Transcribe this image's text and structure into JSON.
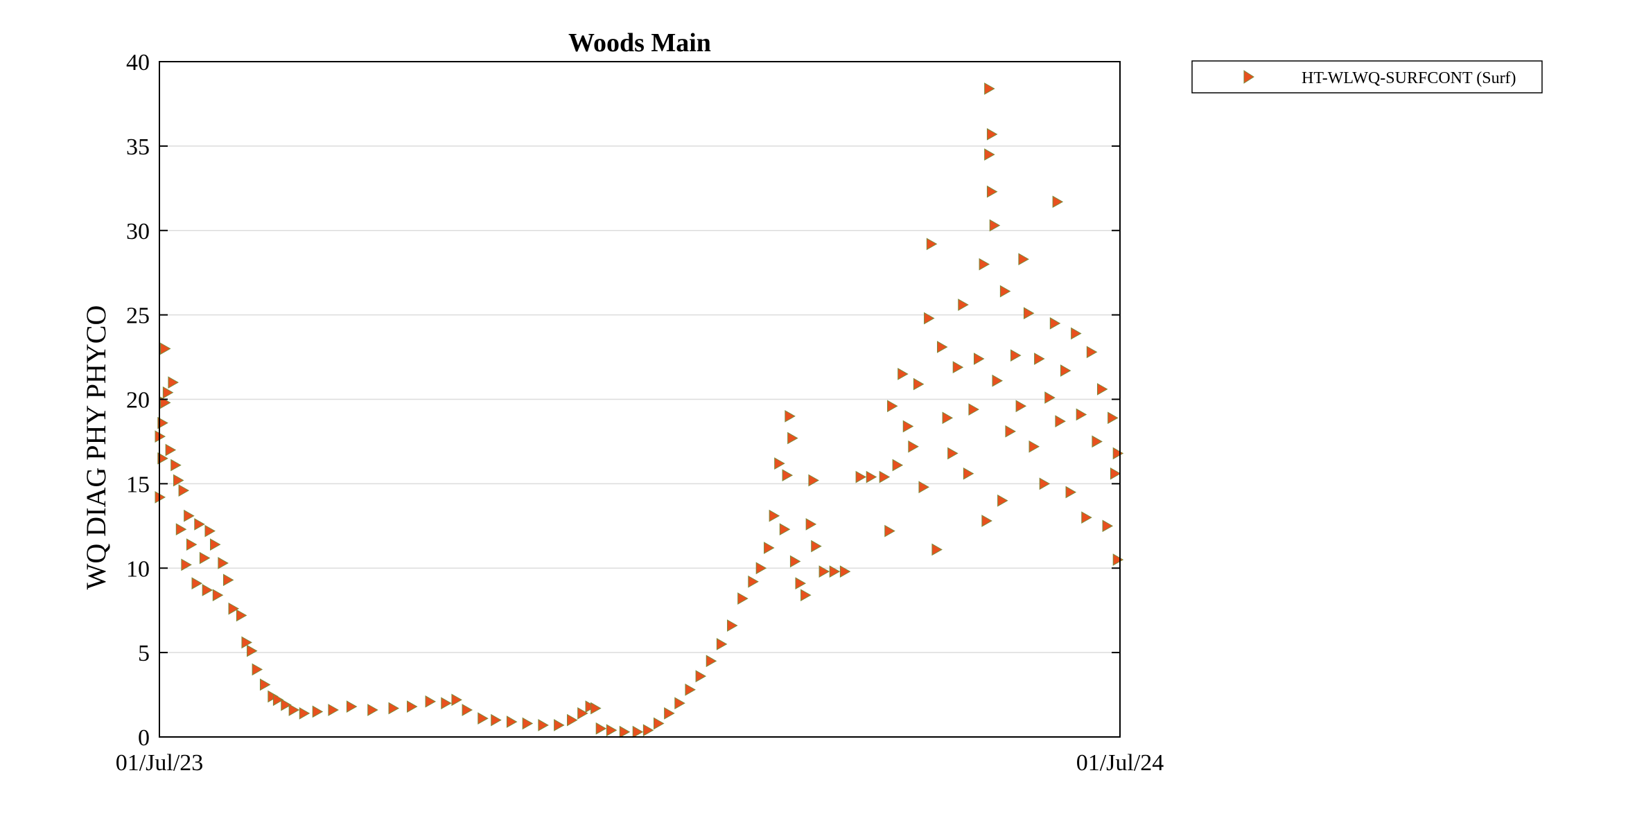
{
  "chart_data": {
    "type": "scatter",
    "title": "Woods Main",
    "xlabel": "",
    "ylabel": "WQ DIAG PHY PHYCO",
    "xlim": [
      "2023-07-01",
      "2024-07-01"
    ],
    "x_tick_labels": [
      "01/Jul/23",
      "01/Jul/24"
    ],
    "ylim": [
      0,
      40
    ],
    "y_ticks": [
      0,
      5,
      10,
      15,
      20,
      25,
      30,
      35,
      40
    ],
    "grid": true,
    "legend_position": "outside-top-right",
    "series": [
      {
        "name": "HT-WLWQ-SURFCONT (Surf)",
        "marker": "right-triangle",
        "color": "#e8501e",
        "edge_color": "#7a8a3a",
        "points": [
          [
            "2023-07-01",
            14.2
          ],
          [
            "2023-07-01",
            17.8
          ],
          [
            "2023-07-02",
            16.5
          ],
          [
            "2023-07-02",
            18.6
          ],
          [
            "2023-07-03",
            23.0
          ],
          [
            "2023-07-03",
            19.8
          ],
          [
            "2023-07-04",
            20.4
          ],
          [
            "2023-07-05",
            17.0
          ],
          [
            "2023-07-06",
            21.0
          ],
          [
            "2023-07-07",
            16.1
          ],
          [
            "2023-07-08",
            15.2
          ],
          [
            "2023-07-09",
            12.3
          ],
          [
            "2023-07-10",
            14.6
          ],
          [
            "2023-07-11",
            10.2
          ],
          [
            "2023-07-12",
            13.1
          ],
          [
            "2023-07-13",
            11.4
          ],
          [
            "2023-07-15",
            9.1
          ],
          [
            "2023-07-16",
            12.6
          ],
          [
            "2023-07-18",
            10.6
          ],
          [
            "2023-07-19",
            8.7
          ],
          [
            "2023-07-20",
            12.2
          ],
          [
            "2023-07-22",
            11.4
          ],
          [
            "2023-07-23",
            8.4
          ],
          [
            "2023-07-25",
            10.3
          ],
          [
            "2023-07-27",
            9.3
          ],
          [
            "2023-07-29",
            7.6
          ],
          [
            "2023-08-01",
            7.2
          ],
          [
            "2023-08-03",
            5.6
          ],
          [
            "2023-08-05",
            5.1
          ],
          [
            "2023-08-07",
            4.0
          ],
          [
            "2023-08-10",
            3.1
          ],
          [
            "2023-08-13",
            2.4
          ],
          [
            "2023-08-15",
            2.2
          ],
          [
            "2023-08-18",
            1.9
          ],
          [
            "2023-08-21",
            1.6
          ],
          [
            "2023-08-25",
            1.4
          ],
          [
            "2023-08-30",
            1.5
          ],
          [
            "2023-09-05",
            1.6
          ],
          [
            "2023-09-12",
            1.8
          ],
          [
            "2023-09-20",
            1.6
          ],
          [
            "2023-09-28",
            1.7
          ],
          [
            "2023-10-05",
            1.8
          ],
          [
            "2023-10-12",
            2.1
          ],
          [
            "2023-10-18",
            2.0
          ],
          [
            "2023-10-22",
            2.2
          ],
          [
            "2023-10-26",
            1.6
          ],
          [
            "2023-11-01",
            1.1
          ],
          [
            "2023-11-06",
            1.0
          ],
          [
            "2023-11-12",
            0.9
          ],
          [
            "2023-11-18",
            0.8
          ],
          [
            "2023-11-24",
            0.7
          ],
          [
            "2023-11-30",
            0.7
          ],
          [
            "2023-12-05",
            1.0
          ],
          [
            "2023-12-09",
            1.4
          ],
          [
            "2023-12-12",
            1.8
          ],
          [
            "2023-12-14",
            1.7
          ],
          [
            "2023-12-16",
            0.5
          ],
          [
            "2023-12-20",
            0.4
          ],
          [
            "2023-12-25",
            0.3
          ],
          [
            "2023-12-30",
            0.3
          ],
          [
            "2024-01-03",
            0.4
          ],
          [
            "2024-01-07",
            0.8
          ],
          [
            "2024-01-11",
            1.4
          ],
          [
            "2024-01-15",
            2.0
          ],
          [
            "2024-01-19",
            2.8
          ],
          [
            "2024-01-23",
            3.6
          ],
          [
            "2024-01-27",
            4.5
          ],
          [
            "2024-01-31",
            5.5
          ],
          [
            "2024-02-04",
            6.6
          ],
          [
            "2024-02-08",
            8.2
          ],
          [
            "2024-02-12",
            9.2
          ],
          [
            "2024-02-15",
            10.0
          ],
          [
            "2024-02-18",
            11.2
          ],
          [
            "2024-02-20",
            13.1
          ],
          [
            "2024-02-22",
            16.2
          ],
          [
            "2024-02-24",
            12.3
          ],
          [
            "2024-02-25",
            15.5
          ],
          [
            "2024-02-26",
            19.0
          ],
          [
            "2024-02-27",
            17.7
          ],
          [
            "2024-02-28",
            10.4
          ],
          [
            "2024-03-01",
            9.1
          ],
          [
            "2024-03-03",
            8.4
          ],
          [
            "2024-03-05",
            12.6
          ],
          [
            "2024-03-06",
            15.2
          ],
          [
            "2024-03-07",
            11.3
          ],
          [
            "2024-03-10",
            9.8
          ],
          [
            "2024-03-14",
            9.8
          ],
          [
            "2024-03-18",
            9.8
          ],
          [
            "2024-03-24",
            15.4
          ],
          [
            "2024-03-28",
            15.4
          ],
          [
            "2024-04-02",
            15.4
          ],
          [
            "2024-04-04",
            12.2
          ],
          [
            "2024-04-05",
            19.6
          ],
          [
            "2024-04-07",
            16.1
          ],
          [
            "2024-04-09",
            21.5
          ],
          [
            "2024-04-11",
            18.4
          ],
          [
            "2024-04-13",
            17.2
          ],
          [
            "2024-04-15",
            20.9
          ],
          [
            "2024-04-17",
            14.8
          ],
          [
            "2024-04-19",
            24.8
          ],
          [
            "2024-04-20",
            29.2
          ],
          [
            "2024-04-22",
            11.1
          ],
          [
            "2024-04-24",
            23.1
          ],
          [
            "2024-04-26",
            18.9
          ],
          [
            "2024-04-28",
            16.8
          ],
          [
            "2024-04-30",
            21.9
          ],
          [
            "2024-05-02",
            25.6
          ],
          [
            "2024-05-04",
            15.6
          ],
          [
            "2024-05-06",
            19.4
          ],
          [
            "2024-05-08",
            22.4
          ],
          [
            "2024-05-10",
            28.0
          ],
          [
            "2024-05-11",
            12.8
          ],
          [
            "2024-05-12",
            38.4
          ],
          [
            "2024-05-12",
            34.5
          ],
          [
            "2024-05-13",
            32.3
          ],
          [
            "2024-05-13",
            35.7
          ],
          [
            "2024-05-14",
            30.3
          ],
          [
            "2024-05-15",
            21.1
          ],
          [
            "2024-05-17",
            14.0
          ],
          [
            "2024-05-18",
            26.4
          ],
          [
            "2024-05-20",
            18.1
          ],
          [
            "2024-05-22",
            22.6
          ],
          [
            "2024-05-24",
            19.6
          ],
          [
            "2024-05-25",
            28.3
          ],
          [
            "2024-05-27",
            25.1
          ],
          [
            "2024-05-29",
            17.2
          ],
          [
            "2024-05-31",
            22.4
          ],
          [
            "2024-06-02",
            15.0
          ],
          [
            "2024-06-04",
            20.1
          ],
          [
            "2024-06-06",
            24.5
          ],
          [
            "2024-06-07",
            31.7
          ],
          [
            "2024-06-08",
            18.7
          ],
          [
            "2024-06-10",
            21.7
          ],
          [
            "2024-06-12",
            14.5
          ],
          [
            "2024-06-14",
            23.9
          ],
          [
            "2024-06-16",
            19.1
          ],
          [
            "2024-06-18",
            13.0
          ],
          [
            "2024-06-20",
            22.8
          ],
          [
            "2024-06-22",
            17.5
          ],
          [
            "2024-06-24",
            20.6
          ],
          [
            "2024-06-26",
            12.5
          ],
          [
            "2024-06-28",
            18.9
          ],
          [
            "2024-06-29",
            15.6
          ],
          [
            "2024-06-30",
            10.5
          ],
          [
            "2024-06-30",
            16.8
          ]
        ]
      }
    ]
  }
}
